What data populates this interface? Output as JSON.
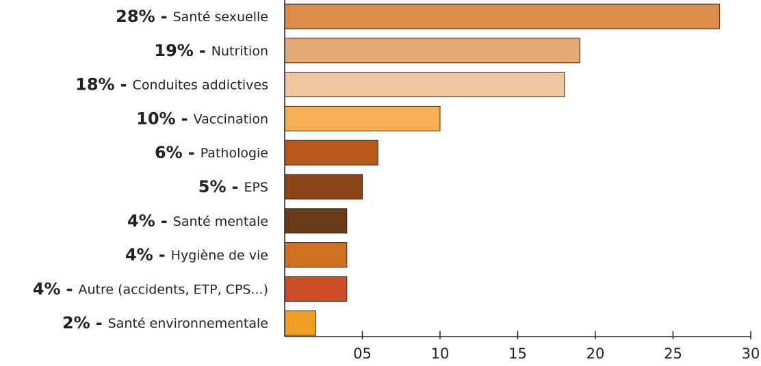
{
  "chart_data": {
    "type": "barh",
    "categories": [
      "Santé sexuelle",
      "Nutrition",
      "Conduites addictives",
      "Vaccination",
      "Pathologie",
      "EPS",
      "Santé mentale",
      "Hygiène de vie",
      "Autre (accidents, ETP, CPS...)",
      "Santé environnementale"
    ],
    "values": [
      28,
      19,
      18,
      10,
      6,
      5,
      4,
      4,
      4,
      2
    ],
    "value_labels": [
      "28%",
      "19%",
      "18%",
      "10%",
      "6%",
      "5%",
      "4%",
      "4%",
      "4%",
      "2%"
    ],
    "separator": "-",
    "colors": [
      "#d98c4a",
      "#e3a874",
      "#eec6a0",
      "#f5ae52",
      "#b8581b",
      "#8b4415",
      "#693a18",
      "#d06f1e",
      "#cc4e26",
      "#f09f25"
    ],
    "xlim": [
      0,
      30
    ],
    "xticks": [
      {
        "value": 5,
        "label": "05"
      },
      10,
      15,
      20,
      25,
      30
    ]
  }
}
